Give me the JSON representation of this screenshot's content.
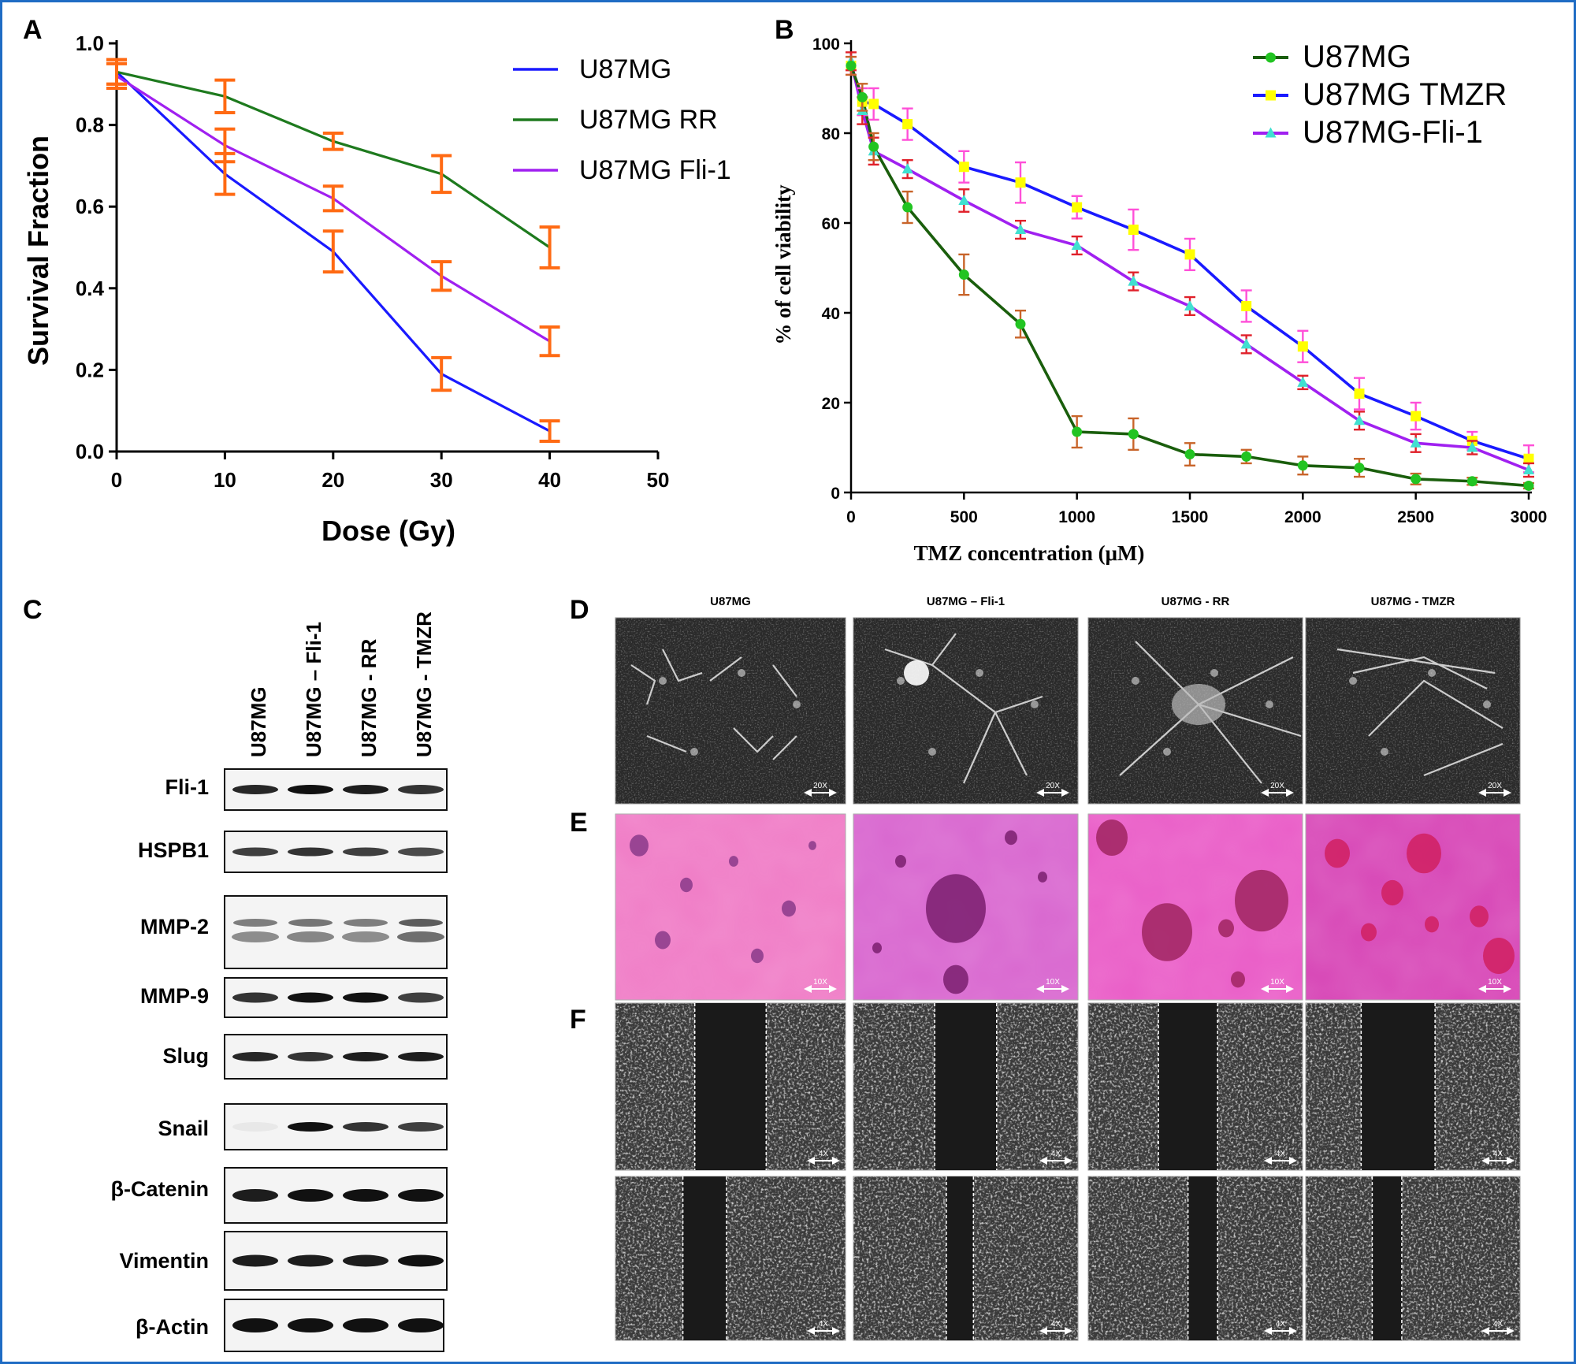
{
  "figure": {
    "border_color": "#1f6cc4"
  },
  "panel_a": {
    "letter": "A",
    "chart_data": {
      "type": "line",
      "xlabel": "Dose (Gy)",
      "ylabel": "Survival Fraction",
      "xlim": [
        0,
        50
      ],
      "ylim": [
        0,
        1.0
      ],
      "xticks": [
        "0",
        "10",
        "20",
        "30",
        "40",
        "50"
      ],
      "yticks": [
        "0.0",
        "0.2",
        "0.4",
        "0.6",
        "0.8",
        "1.0"
      ],
      "legend_position": "top-right",
      "grid": false,
      "x": [
        0,
        10,
        20,
        30,
        40
      ],
      "error_bar_color": "#ff6a13",
      "series": [
        {
          "name": "U87MG",
          "color": "#1a1aff",
          "values": [
            0.93,
            0.68,
            0.49,
            0.19,
            0.05
          ],
          "errors": [
            0.03,
            0.05,
            0.05,
            0.04,
            0.025
          ]
        },
        {
          "name": "U87MG RR",
          "color": "#1e7a1e",
          "values": [
            0.93,
            0.87,
            0.76,
            0.68,
            0.5
          ],
          "errors": [
            0.03,
            0.04,
            0.02,
            0.045,
            0.05
          ]
        },
        {
          "name": "U87MG Fli-1",
          "color": "#a020f0",
          "values": [
            0.92,
            0.75,
            0.62,
            0.43,
            0.27
          ],
          "errors": [
            0.03,
            0.04,
            0.03,
            0.035,
            0.035
          ]
        }
      ]
    }
  },
  "panel_b": {
    "letter": "B",
    "chart_data": {
      "type": "line",
      "xlabel": "TMZ concentration (μM)",
      "ylabel": "% of cell viability",
      "xlim": [
        0,
        3000
      ],
      "ylim": [
        0,
        100
      ],
      "xticks": [
        "0",
        "500",
        "1000",
        "1500",
        "2000",
        "2500",
        "3000"
      ],
      "yticks": [
        "0",
        "20",
        "40",
        "60",
        "80",
        "100"
      ],
      "legend_position": "top-right",
      "grid": false,
      "series": [
        {
          "name": "U87MG",
          "color": "#1a5e0c",
          "marker_color": "#22c422",
          "marker": "circle",
          "error_color": "#c8642a",
          "x": [
            0,
            50,
            100,
            250,
            500,
            750,
            1000,
            1250,
            1500,
            1750,
            2000,
            2250,
            2500,
            2750,
            3000
          ],
          "values": [
            95,
            88,
            77,
            63.5,
            48.5,
            37.5,
            13.5,
            13,
            8.5,
            8,
            6,
            5.5,
            3,
            2.5,
            1.5
          ],
          "errors": [
            2,
            3,
            3,
            3.5,
            4.5,
            3,
            3.5,
            3.5,
            2.5,
            1.5,
            2,
            2,
            1.2,
            0.8,
            0.6
          ]
        },
        {
          "name": "U87MG TMZR",
          "color": "#1a1aff",
          "marker_color": "#ffff00",
          "marker": "square",
          "error_color": "#ff4fd8",
          "x": [
            0,
            50,
            100,
            250,
            500,
            750,
            1000,
            1250,
            1500,
            1750,
            2000,
            2250,
            2500,
            2750,
            3000
          ],
          "values": [
            95,
            87,
            86.5,
            82,
            72.5,
            69,
            63.5,
            58.5,
            53,
            41.5,
            32.5,
            22,
            17,
            11.5,
            7.5
          ],
          "errors": [
            2,
            3,
            3.5,
            3.5,
            3.5,
            4.5,
            2.5,
            4.5,
            3.5,
            3.5,
            3.5,
            3.5,
            3,
            2,
            3
          ]
        },
        {
          "name": "U87MG-Fli-1",
          "color": "#a020f0",
          "marker_color": "#40e0d0",
          "marker": "triangle",
          "error_color": "#e0202a",
          "x": [
            0,
            50,
            100,
            250,
            500,
            750,
            1000,
            1250,
            1500,
            1750,
            2000,
            2250,
            2500,
            2750,
            3000
          ],
          "values": [
            96,
            85,
            76,
            72,
            65,
            58.5,
            55,
            47,
            41.5,
            33,
            24.5,
            16,
            11,
            10,
            5
          ],
          "errors": [
            2,
            3,
            3,
            2,
            2.5,
            2,
            2,
            2,
            2,
            2,
            1.5,
            2,
            2,
            1.5,
            1.5
          ]
        }
      ]
    }
  },
  "panel_c": {
    "letter": "C",
    "lanes": [
      "U87MG",
      "U87MG – Fli-1",
      "U87MG - RR",
      "U87MG - TMZR"
    ],
    "proteins": [
      "Fli-1",
      "HSPB1",
      "MMP-2",
      "MMP-9",
      "Slug",
      "Snail",
      "β-Catenin",
      "Vimentin",
      "β-Actin"
    ]
  },
  "panel_d": {
    "letter": "D",
    "columns": [
      "U87MG",
      "U87MG – Fli-1",
      "U87MG - RR",
      "U87MG - TMZR"
    ],
    "magnification": "20X"
  },
  "panel_e": {
    "letter": "E",
    "magnification": "10X"
  },
  "panel_f": {
    "letter": "F",
    "magnification": "4X"
  }
}
